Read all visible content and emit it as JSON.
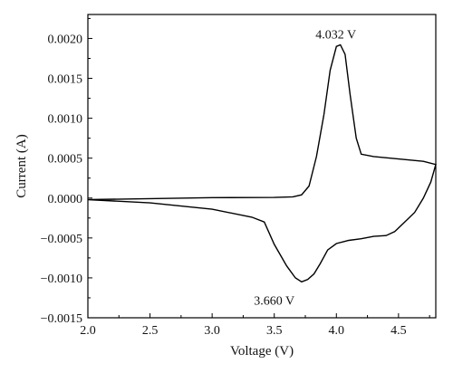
{
  "chart_data": {
    "type": "line",
    "title": "",
    "xlabel": "Voltage (V)",
    "ylabel": "Current (A)",
    "xlim": [
      2.0,
      4.8
    ],
    "ylim": [
      -0.0015,
      0.0023
    ],
    "x_ticks": [
      "2.0",
      "2.5",
      "3.0",
      "3.5",
      "4.0",
      "4.5"
    ],
    "y_ticks": [
      "−0.0015",
      "−0.0010",
      "−0.0005",
      "0.0000",
      "0.0005",
      "0.0010",
      "0.0015",
      "0.0020"
    ],
    "grid": false,
    "legend": "none",
    "line_color": "#000000",
    "series": [
      {
        "points": [
          [
            2.0,
            -2e-05
          ],
          [
            2.5,
            -7e-06
          ],
          [
            3.0,
            5e-06
          ],
          [
            3.5,
            8e-06
          ],
          [
            3.65,
            1.5e-05
          ],
          [
            3.72,
            4e-05
          ],
          [
            3.78,
            0.00015
          ],
          [
            3.84,
            0.00052
          ],
          [
            3.9,
            0.00105
          ],
          [
            3.95,
            0.0016
          ],
          [
            4.0,
            0.0019
          ],
          [
            4.032,
            0.00192
          ],
          [
            4.07,
            0.0018
          ],
          [
            4.11,
            0.0013
          ],
          [
            4.16,
            0.00075
          ],
          [
            4.2,
            0.00055
          ],
          [
            4.3,
            0.00052
          ],
          [
            4.5,
            0.00049
          ],
          [
            4.7,
            0.00046
          ],
          [
            4.8,
            0.00042
          ],
          [
            4.76,
            0.0002
          ],
          [
            4.7,
            0.0
          ],
          [
            4.63,
            -0.00018
          ],
          [
            4.55,
            -0.0003
          ],
          [
            4.47,
            -0.00042
          ],
          [
            4.4,
            -0.00047
          ],
          [
            4.3,
            -0.00048
          ],
          [
            4.2,
            -0.00051
          ],
          [
            4.1,
            -0.00053
          ],
          [
            4.0,
            -0.00057
          ],
          [
            3.93,
            -0.00065
          ],
          [
            3.87,
            -0.00082
          ],
          [
            3.82,
            -0.00095
          ],
          [
            3.77,
            -0.00102
          ],
          [
            3.72,
            -0.00105
          ],
          [
            3.67,
            -0.001
          ],
          [
            3.6,
            -0.00085
          ],
          [
            3.5,
            -0.00058
          ],
          [
            3.42,
            -0.0003
          ],
          [
            3.32,
            -0.00024
          ],
          [
            3.0,
            -0.00014
          ],
          [
            2.5,
            -6e-05
          ],
          [
            2.0,
            -2e-05
          ]
        ]
      }
    ],
    "annotations": [
      {
        "text": "4.032 V",
        "x": 4.032,
        "y": 0.00192
      },
      {
        "text": "3.660 V",
        "x": 3.66,
        "y": -0.00105
      }
    ]
  }
}
